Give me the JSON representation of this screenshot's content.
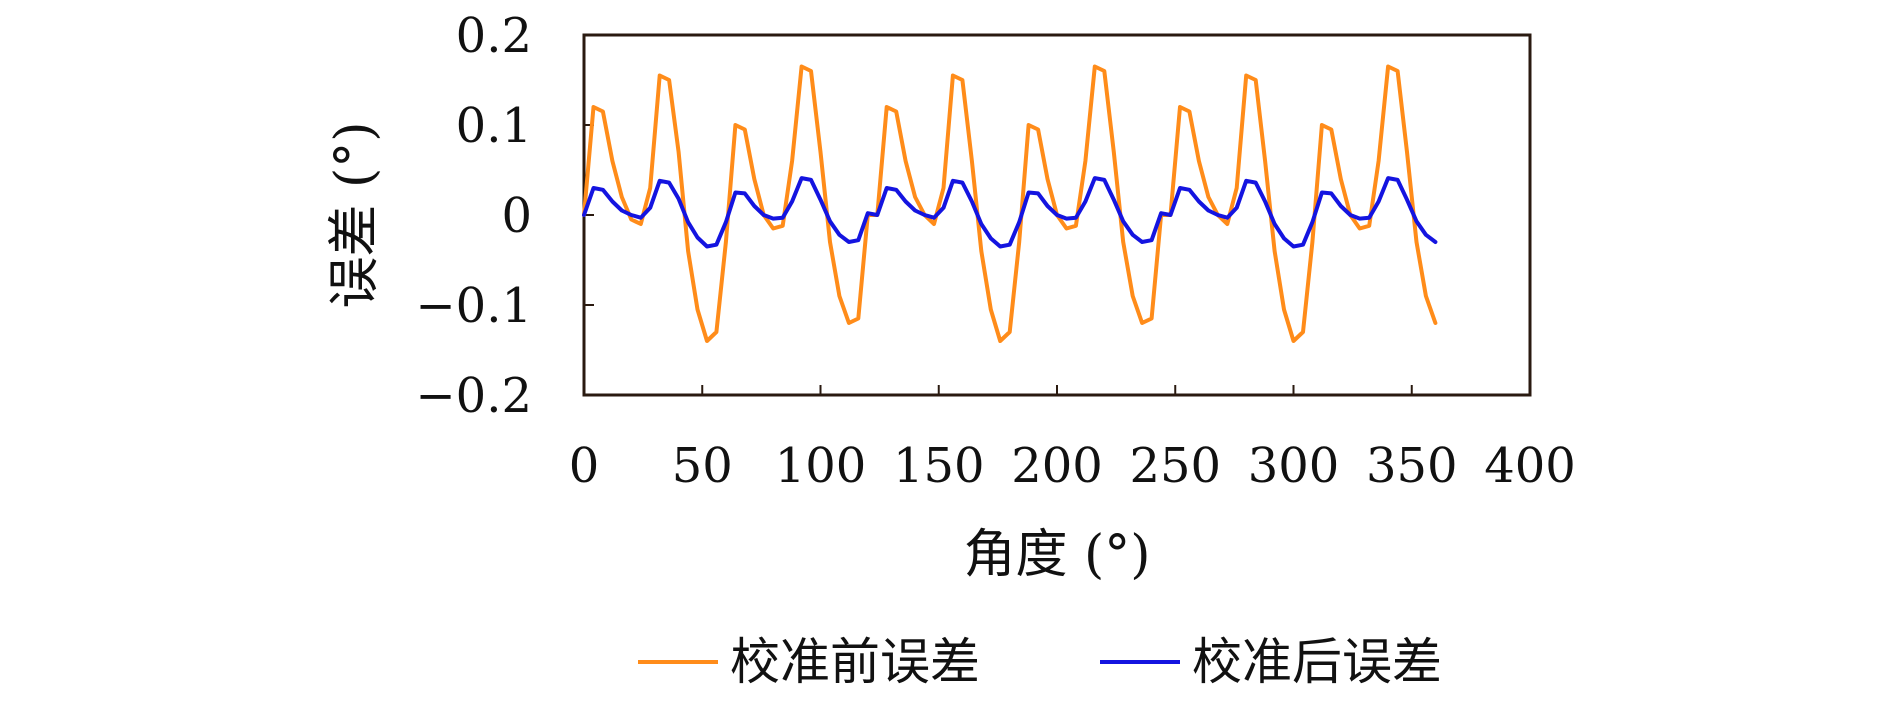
{
  "chart_data": {
    "type": "line",
    "xlabel": "角度 (°)",
    "ylabel": "误差 (°)",
    "xlim": [
      0,
      400
    ],
    "ylim": [
      -0.2,
      0.2
    ],
    "xticks": [
      0,
      50,
      100,
      150,
      200,
      250,
      300,
      350,
      400
    ],
    "xtick_labels": [
      "0",
      "50",
      "100",
      "150",
      "200",
      "250",
      "300",
      "350",
      "400"
    ],
    "yticks": [
      0.2,
      0.1,
      0,
      -0.1,
      -0.2
    ],
    "ytick_labels": [
      "0.2",
      "0.1",
      "0",
      "−0.1",
      "−0.2"
    ],
    "grid": false,
    "legend_position": "bottom",
    "x": [
      0,
      4,
      8,
      12,
      16,
      20,
      24,
      28,
      32,
      36,
      40,
      44,
      48,
      52,
      56,
      60,
      64,
      68,
      72,
      76,
      80,
      84,
      88,
      92,
      96,
      100,
      104,
      108,
      112,
      116,
      120,
      124,
      128,
      132,
      136,
      140,
      144,
      148,
      152,
      156,
      160,
      164,
      168,
      172,
      176,
      180,
      184,
      188,
      192,
      196,
      200,
      204,
      208,
      212,
      216,
      220,
      224,
      228,
      232,
      236,
      240,
      244,
      248,
      252,
      256,
      260,
      264,
      268,
      272,
      276,
      280,
      284,
      288,
      292,
      296,
      300,
      304,
      308,
      312,
      316,
      320,
      324,
      328,
      332,
      336,
      340,
      344,
      348,
      352,
      356,
      360
    ],
    "series": [
      {
        "name": "校准前误差",
        "color": "#ff8c1a",
        "values": [
          0.0,
          0.12,
          0.115,
          0.06,
          0.02,
          -0.005,
          -0.01,
          0.03,
          0.155,
          0.15,
          0.07,
          -0.04,
          -0.105,
          -0.14,
          -0.13,
          -0.03,
          0.1,
          0.095,
          0.04,
          0.0,
          -0.015,
          -0.012,
          0.06,
          0.165,
          0.16,
          0.07,
          -0.03,
          -0.09,
          -0.12,
          -0.115,
          0.0,
          0.0,
          0.12,
          0.115,
          0.06,
          0.02,
          0.0,
          -0.01,
          0.03,
          0.155,
          0.15,
          0.06,
          -0.04,
          -0.105,
          -0.14,
          -0.13,
          -0.03,
          0.1,
          0.095,
          0.04,
          0.0,
          -0.015,
          -0.012,
          0.06,
          0.165,
          0.16,
          0.07,
          -0.03,
          -0.09,
          -0.12,
          -0.115,
          0.0,
          0.0,
          0.12,
          0.115,
          0.06,
          0.02,
          0.0,
          -0.01,
          0.03,
          0.155,
          0.15,
          0.06,
          -0.04,
          -0.105,
          -0.14,
          -0.13,
          -0.03,
          0.1,
          0.095,
          0.04,
          0.0,
          -0.015,
          -0.012,
          0.06,
          0.165,
          0.16,
          0.07,
          -0.03,
          -0.09,
          -0.12
        ]
      },
      {
        "name": "校准后误差",
        "color": "#1414e0",
        "values": [
          0.0,
          0.03,
          0.028,
          0.015,
          0.005,
          0.0,
          -0.003,
          0.008,
          0.038,
          0.036,
          0.018,
          -0.008,
          -0.025,
          -0.035,
          -0.033,
          -0.008,
          0.025,
          0.024,
          0.01,
          0.0,
          -0.004,
          -0.003,
          0.015,
          0.041,
          0.039,
          0.017,
          -0.007,
          -0.022,
          -0.03,
          -0.028,
          0.002,
          0.0,
          0.03,
          0.028,
          0.015,
          0.005,
          0.0,
          -0.003,
          0.008,
          0.038,
          0.036,
          0.015,
          -0.01,
          -0.026,
          -0.035,
          -0.033,
          -0.008,
          0.025,
          0.024,
          0.01,
          0.0,
          -0.004,
          -0.003,
          0.015,
          0.041,
          0.039,
          0.017,
          -0.007,
          -0.022,
          -0.03,
          -0.028,
          0.002,
          0.0,
          0.03,
          0.028,
          0.015,
          0.005,
          0.0,
          -0.003,
          0.008,
          0.038,
          0.036,
          0.015,
          -0.01,
          -0.026,
          -0.035,
          -0.033,
          -0.008,
          0.025,
          0.024,
          0.01,
          0.0,
          -0.004,
          -0.003,
          0.015,
          0.041,
          0.039,
          0.017,
          -0.007,
          -0.022,
          -0.03
        ]
      }
    ]
  }
}
